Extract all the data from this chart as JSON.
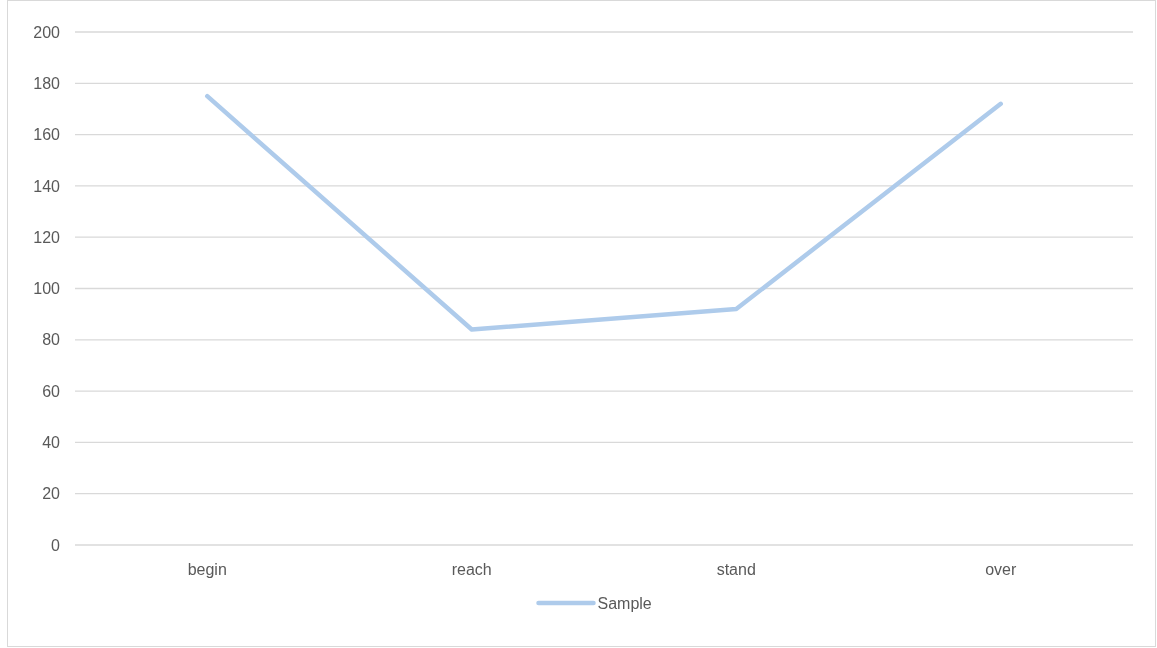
{
  "chart_data": {
    "type": "line",
    "categories": [
      "begin",
      "reach",
      "stand",
      "over"
    ],
    "series": [
      {
        "name": "Sample",
        "color": "#aecbeb",
        "values": [
          175,
          84,
          92,
          172
        ]
      }
    ],
    "ylim": [
      0,
      200
    ],
    "yticks": [
      0,
      20,
      40,
      60,
      80,
      100,
      120,
      140,
      160,
      180,
      200
    ],
    "grid": "y",
    "legend": "bottom",
    "marker": "none",
    "line_style": "solid"
  }
}
